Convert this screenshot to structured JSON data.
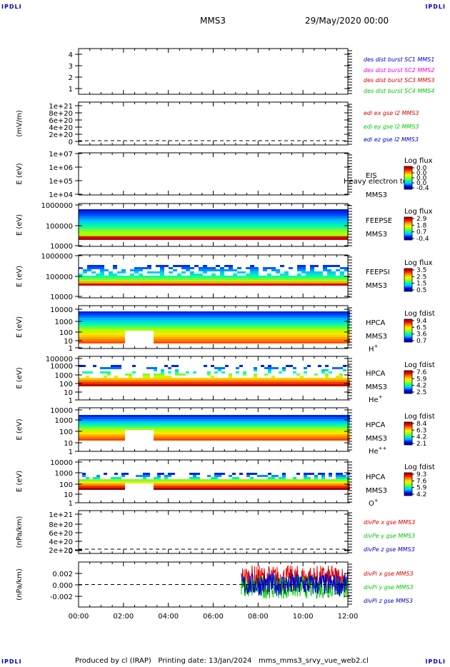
{
  "corners": {
    "tl": "IPDLI",
    "tr": "IPDLI",
    "bl": "IPDLI",
    "br": "IPDLI"
  },
  "header": {
    "spacecraft": "MMS3",
    "date": "29/May/2020 00:00"
  },
  "footer": {
    "producer": "Produced by cl (IRAP)",
    "printing": "Printing date: 13/Jan/2024",
    "file": "mms_mms3_srvy_vue_web2.cl"
  },
  "colors": {
    "blue": "#0000cc",
    "magenta": "#ee00ee",
    "red": "#dd0000",
    "green": "#00cc00",
    "colorbar_stops": [
      "#000080",
      "#0000ff",
      "#00bfff",
      "#00ffaa",
      "#aaff00",
      "#ffee00",
      "#ff8800",
      "#ff0000",
      "#880000"
    ]
  },
  "chart_data": [
    {
      "id": "p1",
      "type": "line",
      "ylabel": "",
      "ytick_labels": [
        "4",
        "3",
        "2",
        "1"
      ],
      "ylim": [
        0.7,
        4.3
      ],
      "xlim": [
        "00:00",
        "12:00"
      ],
      "series": [
        {
          "name": "des dist burst SC1 MMS1",
          "values": []
        },
        {
          "name": "des dist burst SC2 MMS2",
          "values": []
        },
        {
          "name": "des dist burst SC3 MMS3",
          "values": []
        },
        {
          "name": "des dist burst SC4 MMS4",
          "values": []
        }
      ]
    },
    {
      "id": "p2",
      "type": "line",
      "ylabel": "(mV/m)",
      "ytick_labels": [
        "1e+21",
        "8e+20",
        "6e+20",
        "4e+20",
        "2e+20",
        "0"
      ],
      "ylim": [
        -2e+20,
        1.05e+21
      ],
      "xlim": [
        "00:00",
        "12:00"
      ],
      "series": [
        {
          "name": "edi ex gse l2 MMS3",
          "values": []
        },
        {
          "name": "edi ey gse l2 MMS3",
          "values": []
        },
        {
          "name": "edi ez gse l2 MMS3",
          "values": []
        }
      ]
    },
    {
      "id": "p3",
      "type": "heatmap",
      "ylabel": "E (eV)",
      "ytick_labels": [
        "1e+07",
        "1e+06",
        "1e+05",
        "1e+04"
      ],
      "log_y": true,
      "ylim": [
        10000.0,
        10000000.0
      ],
      "instrument": "EIS",
      "spacecraft": "MMS3",
      "overlay_text": "Heavy electron to",
      "colorbar": {
        "label": "Log flux",
        "ticks": [
          "0.0",
          "0.0",
          "0.0",
          "0.0",
          "-0.4"
        ]
      }
    },
    {
      "id": "p4",
      "type": "heatmap",
      "ylabel": "E (eV)",
      "ytick_labels": [
        "1000000",
        "100000",
        "10000"
      ],
      "log_y": true,
      "ylim": [
        10000.0,
        1000000.0
      ],
      "instrument": "FEEPSE",
      "spacecraft": "MMS3",
      "colorbar": {
        "label": "Log flux",
        "ticks": [
          "2.9",
          "1.8",
          "0.7",
          "-0.4"
        ]
      }
    },
    {
      "id": "p5",
      "type": "heatmap",
      "ylabel": "E (eV)",
      "ytick_labels": [
        "1000000",
        "100000",
        "10000"
      ],
      "log_y": true,
      "ylim": [
        10000.0,
        1000000.0
      ],
      "instrument": "FEEPSI",
      "spacecraft": "MMS3",
      "colorbar": {
        "label": "Log flux",
        "ticks": [
          "3.5",
          "2.5",
          "1.5",
          "0.5"
        ]
      }
    },
    {
      "id": "p6",
      "type": "heatmap",
      "ylabel": "E (eV)",
      "ytick_labels": [
        "10000",
        "1000",
        "100",
        "10",
        "1"
      ],
      "log_y": true,
      "ylim": [
        1,
        30000.0
      ],
      "instrument": "HPCA",
      "spacecraft": "MMS3",
      "species": "H",
      "charge": "+",
      "colorbar": {
        "label": "Log fdist",
        "ticks": [
          "9.4",
          "6.5",
          "3.6",
          "0.7"
        ]
      }
    },
    {
      "id": "p7",
      "type": "heatmap",
      "ylabel": "E (eV)",
      "ytick_labels": [
        "100000",
        "10000",
        "1000",
        "100",
        "10",
        "1"
      ],
      "log_y": true,
      "ylim": [
        1,
        100000.0
      ],
      "instrument": "HPCA",
      "spacecraft": "MMS3",
      "species": "He",
      "charge": "+",
      "colorbar": {
        "label": "Log fdist",
        "ticks": [
          "7.6",
          "5.9",
          "4.2",
          "2.5"
        ]
      }
    },
    {
      "id": "p8",
      "type": "heatmap",
      "ylabel": "E (eV)",
      "ytick_labels": [
        "10000",
        "1000",
        "100",
        "10",
        "1"
      ],
      "log_y": true,
      "ylim": [
        1,
        10000.0
      ],
      "instrument": "HPCA",
      "spacecraft": "MMS3",
      "species": "He",
      "charge": "++",
      "colorbar": {
        "label": "Log fdist",
        "ticks": [
          "8.4",
          "6.3",
          "4.2",
          "2.1"
        ]
      }
    },
    {
      "id": "p9",
      "type": "heatmap",
      "ylabel": "E (eV)",
      "ytick_labels": [
        "10000",
        "1000",
        "100",
        "10",
        "1"
      ],
      "log_y": true,
      "ylim": [
        1,
        10000.0
      ],
      "instrument": "HPCA",
      "spacecraft": "MMS3",
      "species": "O",
      "charge": "+",
      "colorbar": {
        "label": "Log fdist",
        "ticks": [
          "9.3",
          "7.6",
          "5.9",
          "4.2"
        ]
      }
    },
    {
      "id": "p10",
      "type": "line",
      "ylabel": "(nPa/km)",
      "ytick_labels": [
        "1e+21",
        "8e+20",
        "6e+20",
        "4e+20",
        "2e+20",
        "0"
      ],
      "ylim": [
        -2e+20,
        1.05e+21
      ],
      "xlim": [
        "00:00",
        "12:00"
      ],
      "series": [
        {
          "name": "divPe x gse MMS3",
          "values": []
        },
        {
          "name": "divPe y gse MMS3",
          "values": []
        },
        {
          "name": "divPe z gse MMS3",
          "values": []
        }
      ]
    },
    {
      "id": "p11",
      "type": "line",
      "ylabel": "(nPa/km)",
      "ytick_labels": [
        "0.002",
        "0.000",
        "-0.002"
      ],
      "ylim": [
        -0.0035,
        0.0035
      ],
      "xlim": [
        "00:00",
        "12:00"
      ],
      "data_start": "07:15",
      "data_end": "12:00",
      "series": [
        {
          "name": "divPi x gse MMS3",
          "range": [
            -0.0012,
            0.003
          ]
        },
        {
          "name": "divPi y gse MMS3",
          "range": [
            -0.0022,
            0.0014
          ]
        },
        {
          "name": "divPi z gse MMS3",
          "range": [
            -0.0018,
            0.0018
          ]
        }
      ]
    }
  ],
  "x_axis": {
    "ticks": [
      "00:00",
      "02:00",
      "04:00",
      "06:00",
      "08:00",
      "10:00",
      "12:00"
    ]
  }
}
